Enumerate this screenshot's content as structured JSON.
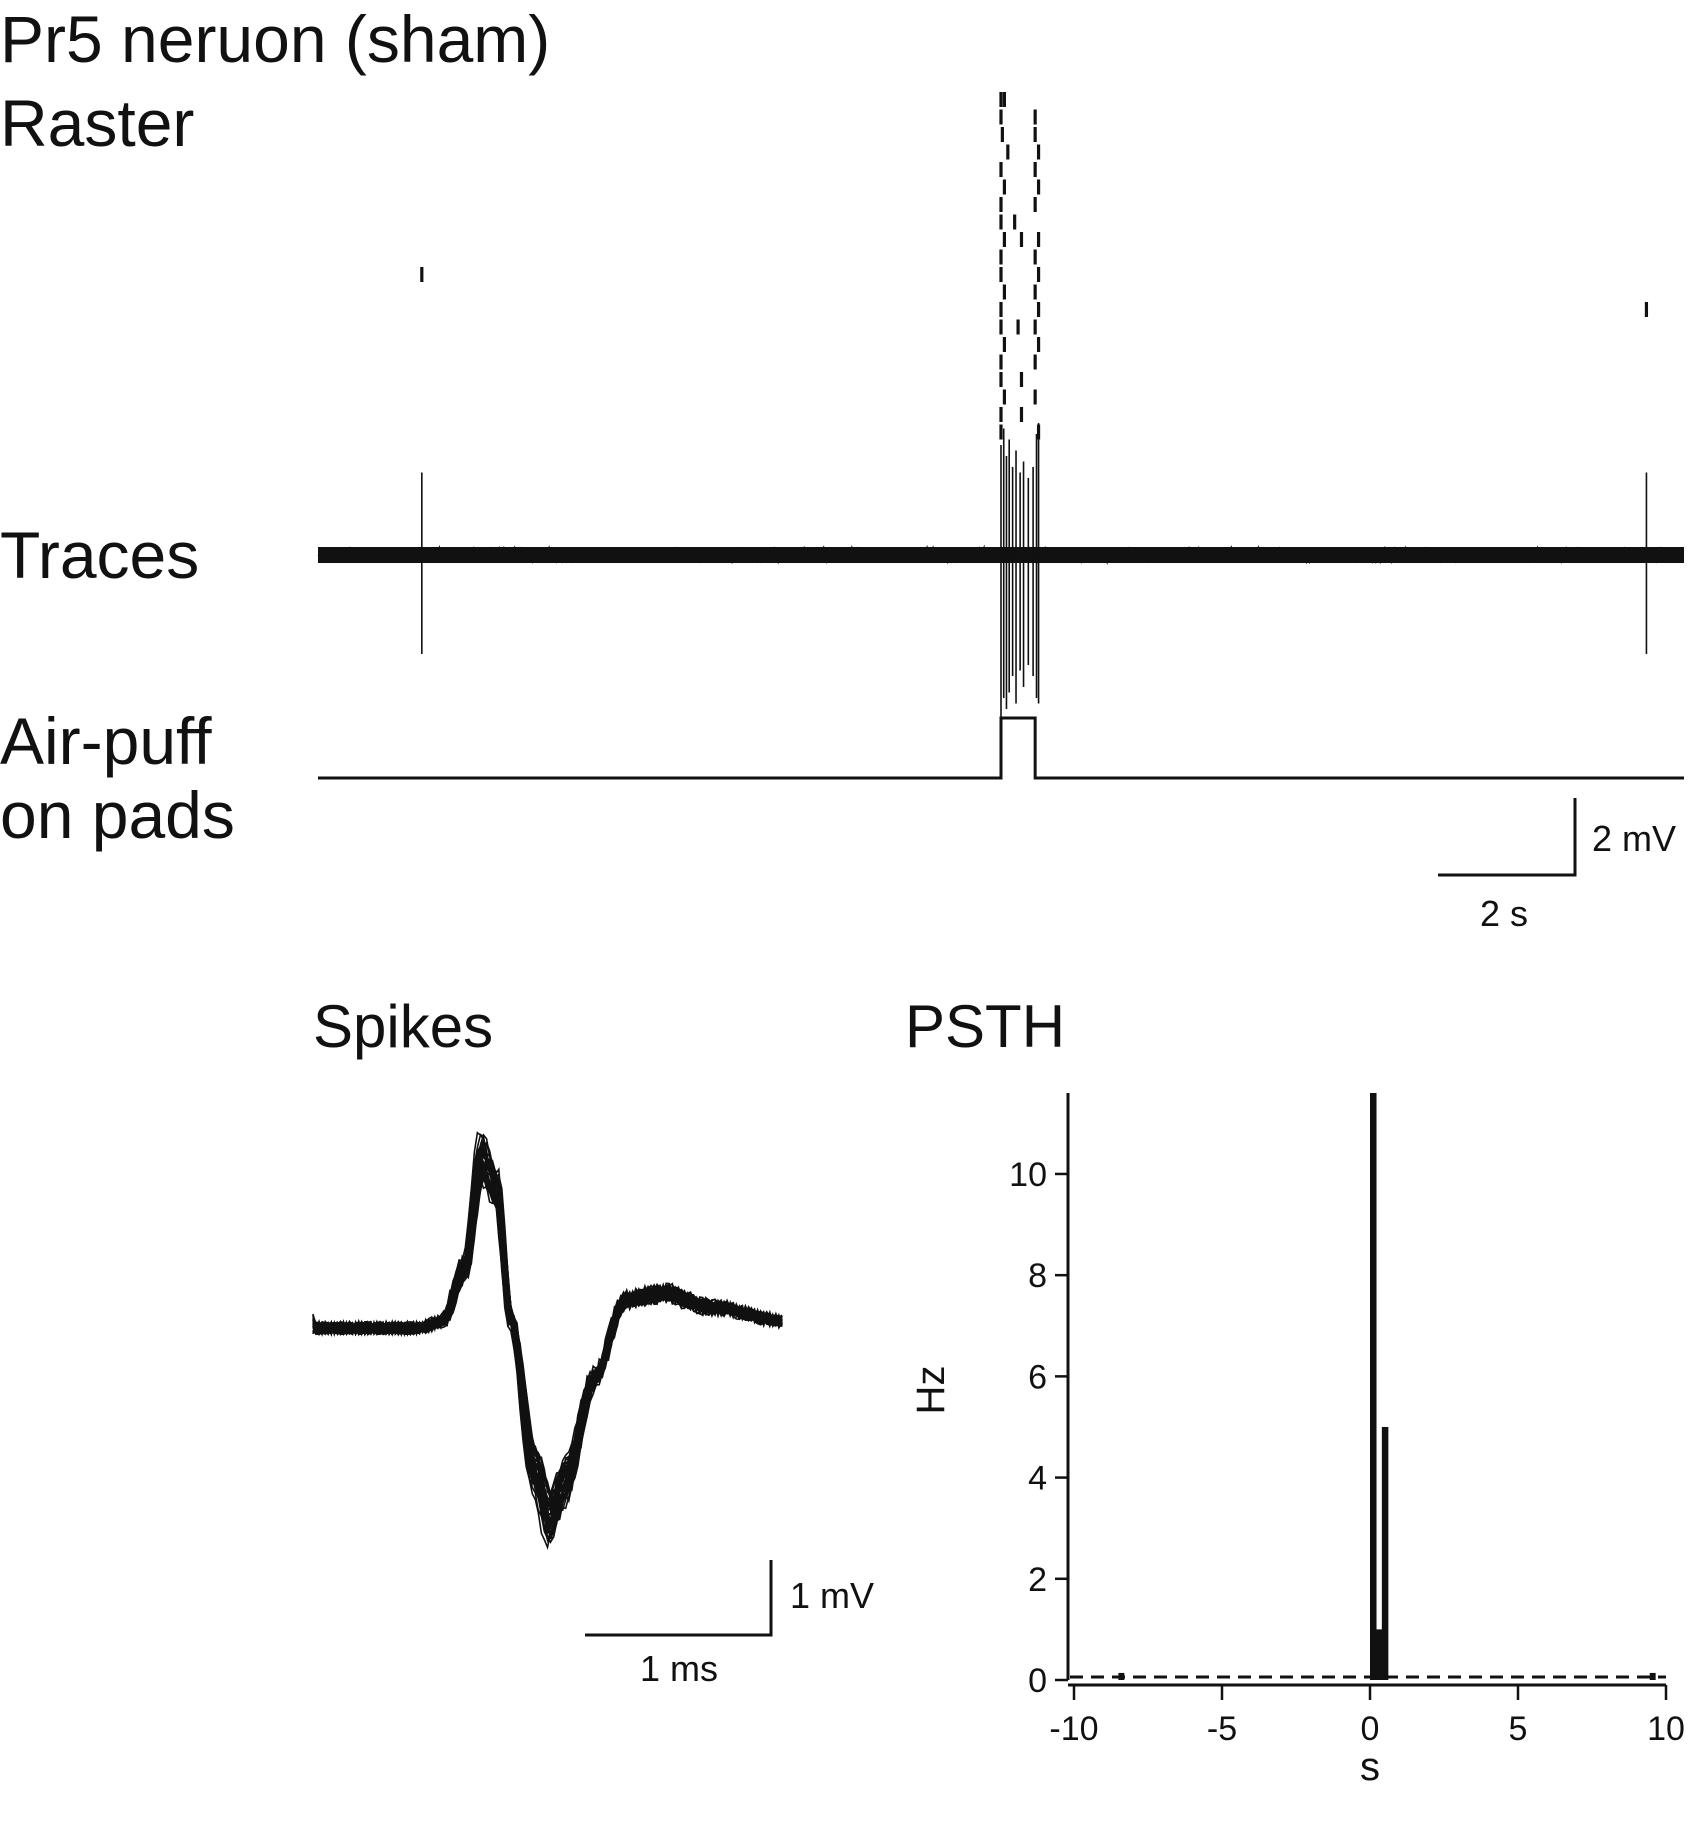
{
  "figure": {
    "title": "Pr5 neruon (sham)",
    "labels": {
      "raster": "Raster",
      "traces": "Traces",
      "airpuff_line1": "Air-puff",
      "airpuff_line2": "on pads",
      "spikes": "Spikes",
      "psth": "PSTH"
    },
    "scale_bars": {
      "trace_voltage": "2 mV",
      "trace_time": "2 s",
      "spike_voltage": "1 mV",
      "spike_time": "1 ms"
    }
  },
  "chart_data": [
    {
      "type": "scatter",
      "name": "raster",
      "x_unit": "s",
      "x_range": [
        -10,
        10
      ],
      "trials": 20,
      "spikes": [
        {
          "trial": 11,
          "t": -8.48
        },
        {
          "trial": 13,
          "t": 9.45
        },
        {
          "trial": 1,
          "t": 0.0
        },
        {
          "trial": 1,
          "t": 0.05
        },
        {
          "trial": 2,
          "t": 0.0
        },
        {
          "trial": 2,
          "t": 0.5
        },
        {
          "trial": 3,
          "t": 0.02
        },
        {
          "trial": 3,
          "t": 0.5
        },
        {
          "trial": 4,
          "t": 0.1
        },
        {
          "trial": 4,
          "t": 0.55
        },
        {
          "trial": 5,
          "t": 0.0
        },
        {
          "trial": 5,
          "t": 0.5
        },
        {
          "trial": 6,
          "t": 0.05
        },
        {
          "trial": 6,
          "t": 0.55
        },
        {
          "trial": 7,
          "t": 0.0
        },
        {
          "trial": 7,
          "t": 0.5
        },
        {
          "trial": 8,
          "t": 0.0
        },
        {
          "trial": 8,
          "t": 0.2
        },
        {
          "trial": 9,
          "t": 0.05
        },
        {
          "trial": 9,
          "t": 0.3
        },
        {
          "trial": 9,
          "t": 0.55
        },
        {
          "trial": 10,
          "t": 0.0
        },
        {
          "trial": 10,
          "t": 0.5
        },
        {
          "trial": 11,
          "t": 0.0
        },
        {
          "trial": 11,
          "t": 0.55
        },
        {
          "trial": 12,
          "t": 0.05
        },
        {
          "trial": 12,
          "t": 0.5
        },
        {
          "trial": 13,
          "t": 0.0
        },
        {
          "trial": 13,
          "t": 0.55
        },
        {
          "trial": 14,
          "t": 0.0
        },
        {
          "trial": 14,
          "t": 0.25
        },
        {
          "trial": 14,
          "t": 0.5
        },
        {
          "trial": 15,
          "t": 0.05
        },
        {
          "trial": 15,
          "t": 0.55
        },
        {
          "trial": 16,
          "t": 0.0
        },
        {
          "trial": 16,
          "t": 0.5
        },
        {
          "trial": 17,
          "t": 0.0
        },
        {
          "trial": 17,
          "t": 0.3
        },
        {
          "trial": 18,
          "t": 0.05
        },
        {
          "trial": 18,
          "t": 0.5
        },
        {
          "trial": 19,
          "t": 0.0
        },
        {
          "trial": 19,
          "t": 0.3
        },
        {
          "trial": 20,
          "t": 0.0
        },
        {
          "trial": 20,
          "t": 0.55
        }
      ]
    },
    {
      "type": "line",
      "name": "traces",
      "x_unit": "s",
      "x_range": [
        -10,
        10
      ],
      "y_unit": "mV",
      "baseline_noise_mV": 0.15,
      "spike_events": [
        {
          "t": -8.48,
          "up": 1.5,
          "down": 1.8
        },
        {
          "t": 9.45,
          "up": 1.5,
          "down": 1.8
        },
        {
          "t": 0.0,
          "up": 2.0,
          "down": 3.0
        },
        {
          "t": 0.04,
          "up": 2.3,
          "down": 2.6
        },
        {
          "t": 0.08,
          "up": 1.8,
          "down": 2.8
        },
        {
          "t": 0.12,
          "up": 2.1,
          "down": 2.5
        },
        {
          "t": 0.17,
          "up": 1.6,
          "down": 2.2
        },
        {
          "t": 0.22,
          "up": 1.9,
          "down": 2.7
        },
        {
          "t": 0.28,
          "up": 1.5,
          "down": 2.1
        },
        {
          "t": 0.33,
          "up": 1.7,
          "down": 2.4
        },
        {
          "t": 0.4,
          "up": 1.4,
          "down": 2.0
        },
        {
          "t": 0.47,
          "up": 1.6,
          "down": 2.2
        },
        {
          "t": 0.52,
          "up": 2.2,
          "down": 2.6
        },
        {
          "t": 0.55,
          "up": 2.4,
          "down": 2.7
        }
      ]
    },
    {
      "type": "line",
      "name": "air-puff stimulus",
      "x_unit": "s",
      "x_range": [
        -10,
        10
      ],
      "on": 0.0,
      "off": 0.5,
      "levels": [
        "off",
        "on"
      ]
    },
    {
      "type": "line",
      "name": "spike waveforms",
      "x_unit": "ms",
      "y_unit": "mV",
      "x_range": [
        -1.0,
        2.1
      ],
      "waveform_count": 40,
      "mean_waveform": [
        [
          -1.0,
          0.0
        ],
        [
          -0.3,
          0.0
        ],
        [
          -0.15,
          0.05
        ],
        [
          0.0,
          0.45
        ],
        [
          0.1,
          1.2
        ],
        [
          0.2,
          1.0
        ],
        [
          0.3,
          0.05
        ],
        [
          0.45,
          -1.0
        ],
        [
          0.55,
          -1.35
        ],
        [
          0.65,
          -1.1
        ],
        [
          0.85,
          -0.35
        ],
        [
          1.05,
          0.2
        ],
        [
          1.3,
          0.25
        ],
        [
          1.6,
          0.15
        ],
        [
          2.1,
          0.05
        ]
      ]
    },
    {
      "type": "bar",
      "name": "PSTH",
      "xlabel": "s",
      "ylabel": "Hz",
      "xlim": [
        -10,
        10
      ],
      "ylim": [
        0,
        11.6
      ],
      "xticks": [
        -10,
        -5,
        0,
        5,
        10
      ],
      "yticks": [
        0,
        2,
        4,
        6,
        8,
        10
      ],
      "bin_width": 0.1,
      "bars": [
        {
          "x": 0.0,
          "value": 11.6
        },
        {
          "x": 0.1,
          "value": 11.6
        },
        {
          "x": 0.2,
          "value": 1.0
        },
        {
          "x": 0.3,
          "value": 1.0
        },
        {
          "x": 0.4,
          "value": 5.0
        },
        {
          "x": 0.5,
          "value": 5.0
        }
      ],
      "baseline_bins": [
        {
          "x": -8.5,
          "value": 0.1
        },
        {
          "x": 9.45,
          "value": 0.1
        }
      ]
    }
  ]
}
